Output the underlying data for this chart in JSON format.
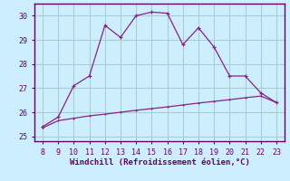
{
  "xlabel": "Windchill (Refroidissement éolien,°C)",
  "x": [
    8,
    9,
    10,
    11,
    12,
    13,
    14,
    15,
    16,
    17,
    18,
    19,
    20,
    21,
    22,
    23
  ],
  "y_main": [
    25.4,
    25.8,
    27.1,
    27.5,
    29.6,
    29.1,
    30.0,
    30.15,
    30.1,
    28.8,
    29.5,
    28.7,
    27.5,
    27.5,
    26.8,
    26.4
  ],
  "y_second": [
    25.35,
    25.65,
    25.75,
    25.85,
    25.92,
    26.0,
    26.08,
    26.15,
    26.22,
    26.3,
    26.38,
    26.45,
    26.52,
    26.6,
    26.67,
    26.4
  ],
  "line_color": "#882288",
  "bg_color": "#cceeff",
  "grid_color": "#aacccc",
  "axis_color": "#660066",
  "ylim": [
    24.8,
    30.5
  ],
  "yticks": [
    25,
    26,
    27,
    28,
    29,
    30
  ],
  "xlim": [
    7.5,
    23.5
  ],
  "xticks": [
    8,
    9,
    10,
    11,
    12,
    13,
    14,
    15,
    16,
    17,
    18,
    19,
    20,
    21,
    22,
    23
  ]
}
